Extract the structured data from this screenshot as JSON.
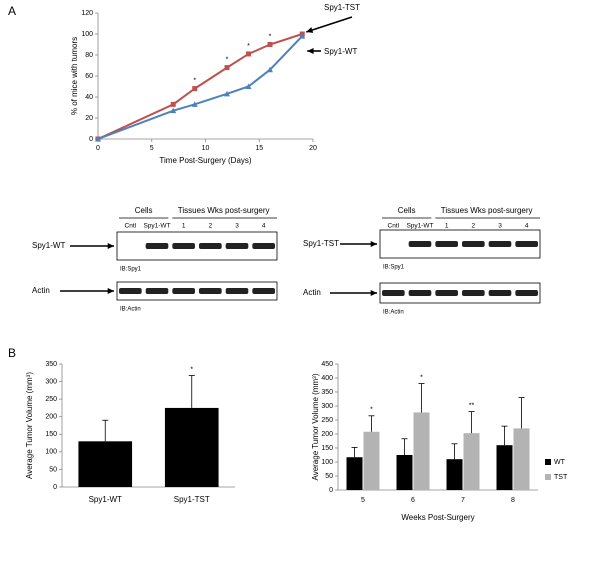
{
  "panels": [
    "A",
    "B"
  ],
  "chart_data": [
    {
      "type": "line",
      "x_label": "Time Post-Surgery (Days)",
      "y_label": "% of mice with tumors",
      "x": [
        0,
        7,
        9,
        12,
        14,
        16,
        19
      ],
      "series": [
        {
          "name": "Spy1-TST",
          "color": "#c0504d",
          "marker": "square",
          "values": [
            0,
            33,
            48,
            68,
            81,
            90,
            100
          ]
        },
        {
          "name": "Spy1-WT",
          "color": "#4f81bd",
          "marker": "triangle",
          "values": [
            0,
            27,
            33,
            43,
            50,
            66,
            98
          ]
        }
      ],
      "xlim": [
        0,
        20
      ],
      "xticks": [
        0,
        5,
        10,
        15,
        20
      ],
      "ylim": [
        0,
        120
      ],
      "yticks": [
        0,
        20,
        40,
        60,
        80,
        100,
        120
      ],
      "annotations": [
        {
          "text": "*",
          "x": 9
        },
        {
          "text": "*",
          "x": 12
        },
        {
          "text": "*",
          "x": 14
        },
        {
          "text": "*",
          "x": 16
        }
      ]
    },
    {
      "type": "bar",
      "y_label": "Average Tumor Volume (mm³)",
      "categories": [
        "Spy1-WT",
        "Spy1-TST"
      ],
      "values": [
        130,
        225
      ],
      "errors": [
        60,
        92
      ],
      "color": "#000000",
      "ylim": [
        0,
        350
      ],
      "yticks": [
        0,
        50,
        100,
        150,
        200,
        250,
        300,
        350
      ],
      "annotations": [
        {
          "text": "*",
          "category": "Spy1-TST"
        }
      ]
    },
    {
      "type": "grouped-bar",
      "x_label": "Weeks Post-Surgery",
      "y_label": "Average Tumor Volume (mm³)",
      "categories": [
        "5",
        "6",
        "7",
        "8"
      ],
      "series": [
        {
          "name": "WT",
          "color": "#000000",
          "values": [
            117,
            125,
            110,
            160
          ],
          "errors": [
            35,
            58,
            55,
            68
          ]
        },
        {
          "name": "TST",
          "color": "#b3b3b3",
          "values": [
            208,
            277,
            203,
            220
          ],
          "errors": [
            57,
            103,
            77,
            110
          ]
        }
      ],
      "ylim": [
        0,
        450
      ],
      "yticks": [
        0,
        50,
        100,
        150,
        200,
        250,
        300,
        350,
        400,
        450
      ],
      "annotations": [
        {
          "text": "*",
          "category": "5"
        },
        {
          "text": "*",
          "category": "6"
        },
        {
          "text": "**",
          "category": "7"
        }
      ]
    }
  ],
  "blots": [
    {
      "cells": "Cells",
      "tissues": "Tissues Wks post-surgery",
      "lanes": [
        "Cntl",
        "Spy1-WT",
        "1",
        "2",
        "3",
        "4"
      ],
      "rows": [
        {
          "label": "Spy1-WT",
          "ib": "IB:Spy1"
        },
        {
          "label": "Actin",
          "ib": "IB:Actin"
        }
      ]
    },
    {
      "cells": "Cells",
      "tissues": "Tissues Wks post-surgery",
      "lanes": [
        "Cntl",
        "Spy1-WT",
        "1",
        "2",
        "3",
        "4"
      ],
      "rows": [
        {
          "label": "Spy1-TST",
          "ib": "IB:Spy1"
        },
        {
          "label": "Actin",
          "ib": "IB:Actin"
        }
      ]
    }
  ]
}
